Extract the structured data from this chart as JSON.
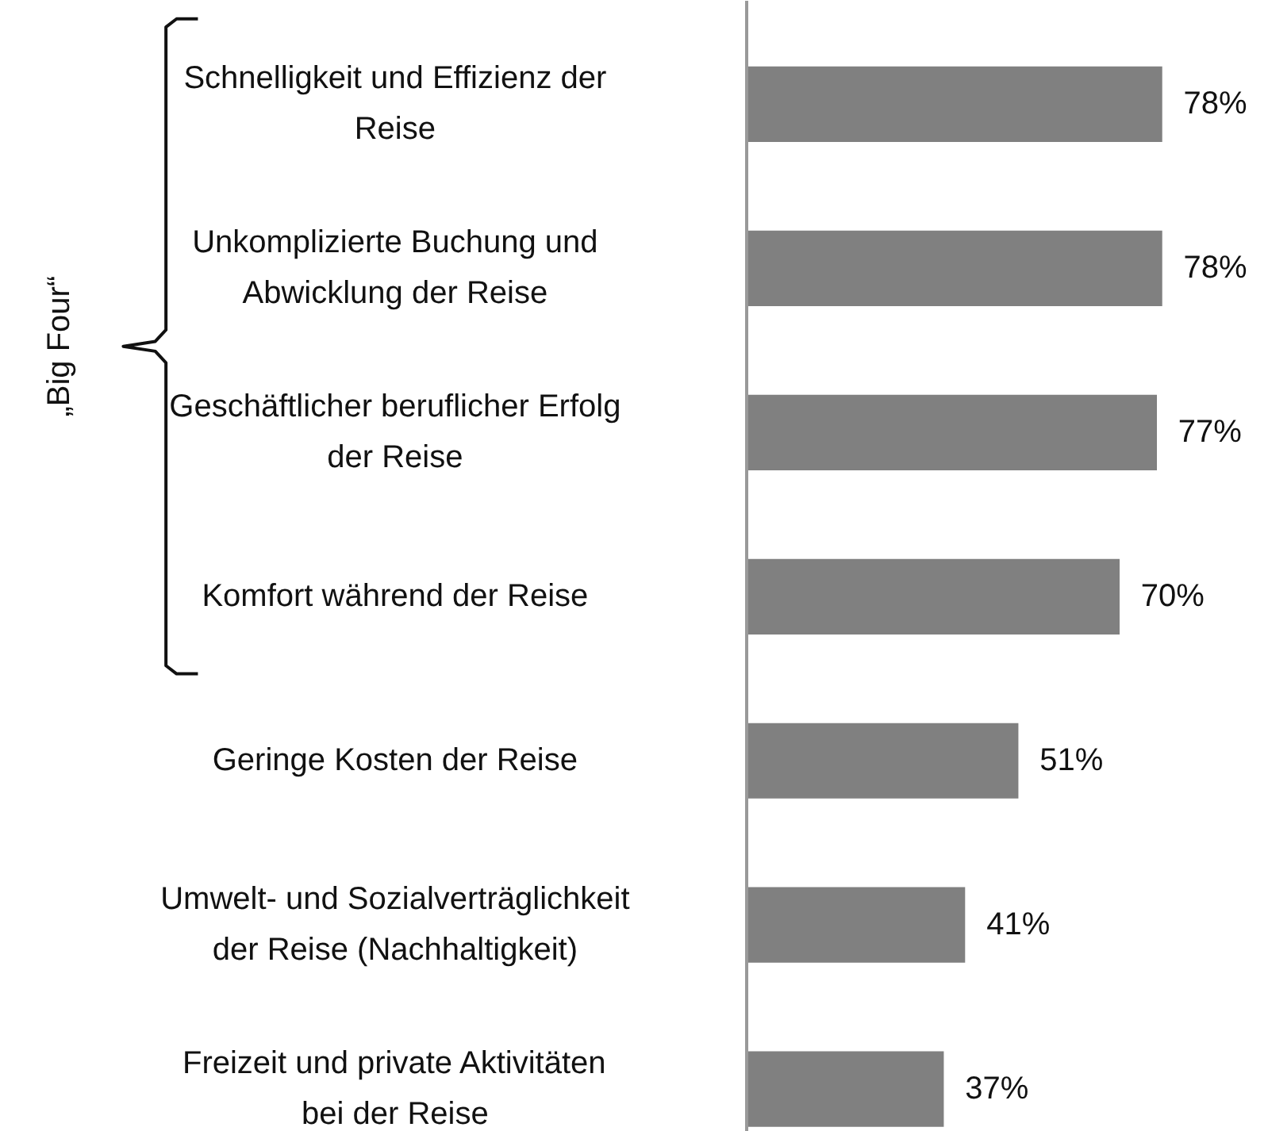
{
  "chart_data": {
    "type": "bar",
    "orientation": "horizontal",
    "categories": [
      "Schnelligkeit und Effizienz der\nReise",
      "Unkomplizierte Buchung und\nAbwicklung der Reise",
      "Geschäftlicher beruflicher Erfolg\nder Reise",
      "Komfort während der Reise",
      "Geringe Kosten der Reise",
      "Umwelt- und Sozialverträglichkeit\nder Reise (Nachhaltigkeit)",
      "Freizeit und private Aktivitäten\nbei der Reise"
    ],
    "values": [
      78,
      78,
      77,
      70,
      51,
      41,
      37
    ],
    "value_labels": [
      "78%",
      "78%",
      "77%",
      "70%",
      "51%",
      "41%",
      "37%"
    ],
    "color": "#808080",
    "annotations": [
      "„Big Four“"
    ]
  }
}
